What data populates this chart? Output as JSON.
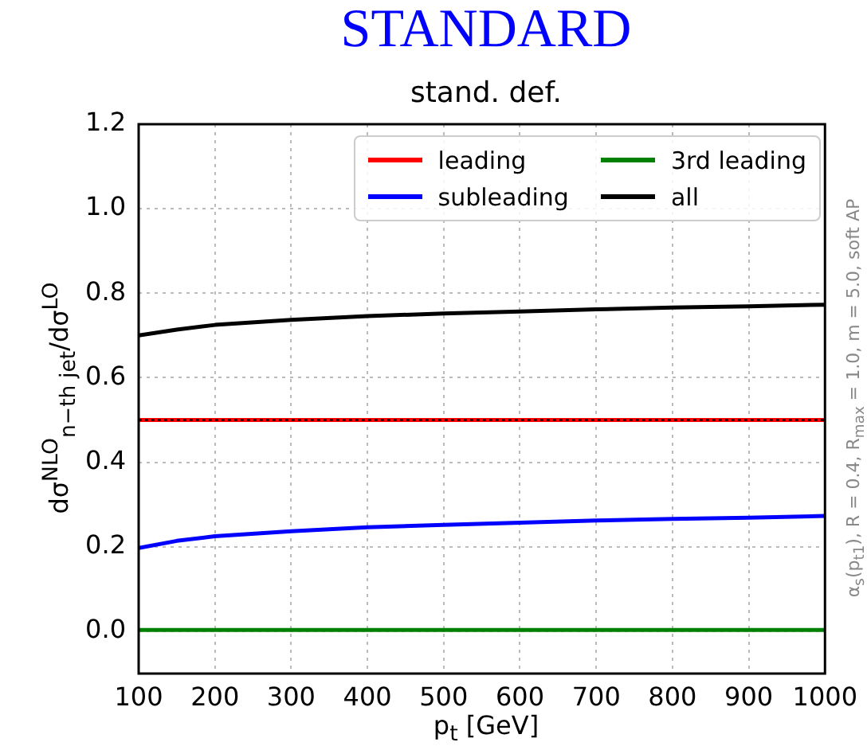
{
  "chart_data": {
    "type": "line",
    "title": "STANDARD",
    "subtitle": "stand. def.",
    "xlabel": "p$_{t}$ [GeV]",
    "ylabel": "dσ$^{NLO}$$_{n−th jet}$/dσ$^{LO}$",
    "annotations": [
      "α$_{s}$(p$_{t1}$), R = 0.4, R$_{max}$ = 1.0, m = 5.0, soft AP"
    ],
    "x": [
      100,
      150,
      200,
      300,
      400,
      500,
      600,
      700,
      800,
      900,
      1000
    ],
    "series": [
      {
        "name": "leading",
        "color": "#ff0000",
        "values": [
          0.5,
          0.5,
          0.5,
          0.5,
          0.5,
          0.5,
          0.5,
          0.5,
          0.5,
          0.5,
          0.5
        ]
      },
      {
        "name": "subleading",
        "color": "#0000ff",
        "values": [
          0.197,
          0.214,
          0.225,
          0.237,
          0.246,
          0.252,
          0.257,
          0.262,
          0.266,
          0.269,
          0.273
        ]
      },
      {
        "name": "3rd leading",
        "color": "#008000",
        "values": [
          0.003,
          0.003,
          0.003,
          0.003,
          0.003,
          0.003,
          0.003,
          0.003,
          0.003,
          0.003,
          0.003
        ]
      },
      {
        "name": "all",
        "color": "#000000",
        "values": [
          0.7,
          0.714,
          0.725,
          0.737,
          0.746,
          0.752,
          0.757,
          0.762,
          0.766,
          0.769,
          0.773
        ]
      }
    ],
    "ref_lines": [
      {
        "axis": "y",
        "value": 0.5,
        "color": "#000000",
        "line_style": "dotted"
      }
    ],
    "xlim": [
      100,
      1000
    ],
    "xticks": [
      100,
      200,
      300,
      400,
      500,
      600,
      700,
      800,
      900,
      1000
    ],
    "ylim": [
      -0.1,
      1.2
    ],
    "yticks": [
      {
        "value": 0,
        "label": "0.0"
      },
      0.2,
      0.4,
      0.6,
      0.8,
      {
        "value": 1,
        "label": "1.0"
      },
      1.2
    ],
    "grid": true,
    "legend": "top right",
    "marker": "none",
    "line_style": "solid"
  }
}
